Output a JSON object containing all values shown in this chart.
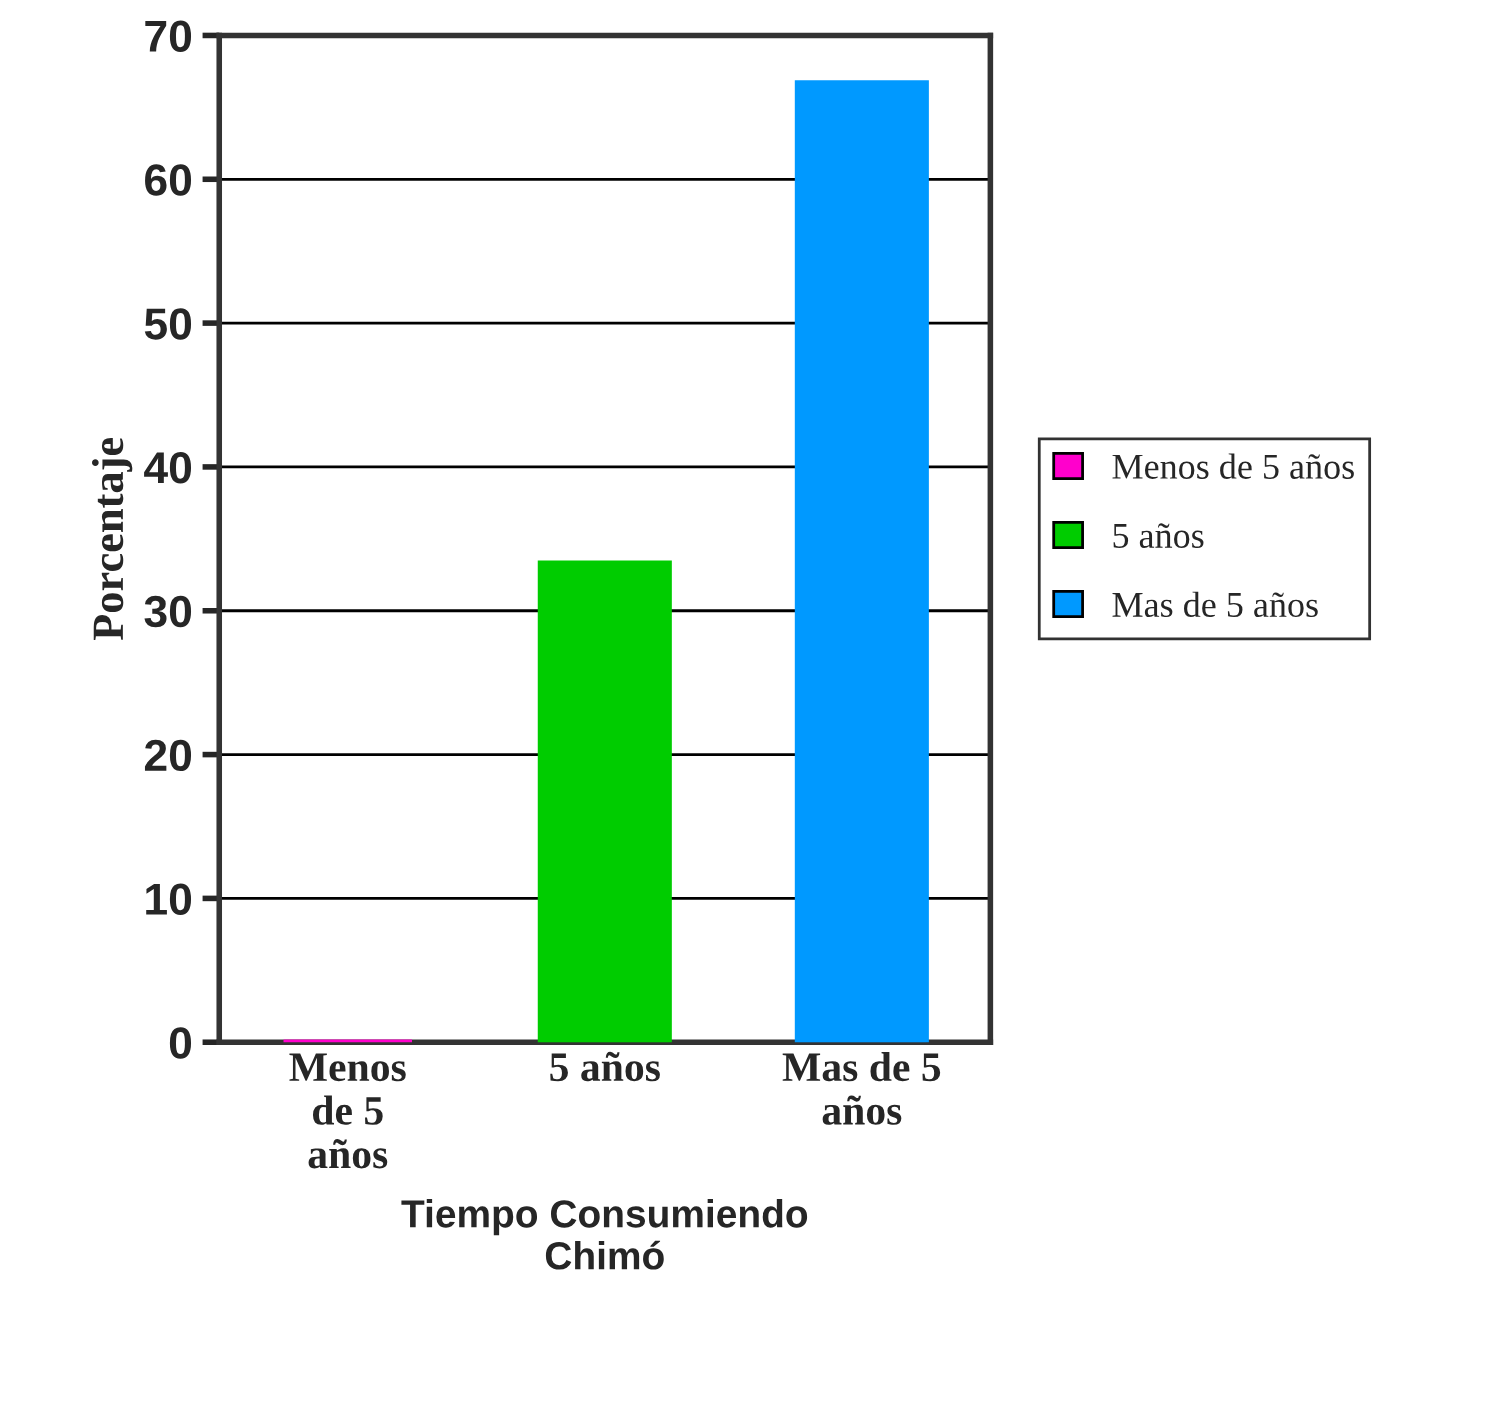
{
  "chart_data": {
    "type": "bar",
    "xlabel": "Tiempo Consumiendo\nChimó",
    "ylabel": "Porcentaje",
    "categories": [
      "Menos\nde 5\naños",
      "5 años",
      "Mas de 5\naños"
    ],
    "series": [
      {
        "name": "Menos de 5 años",
        "color": "#ff00cc",
        "values": [
          0,
          null,
          null
        ]
      },
      {
        "name": "5 años",
        "color": "#00cc00",
        "values": [
          null,
          33.3,
          null
        ]
      },
      {
        "name": "Mas de 5 años",
        "color": "#0099ff",
        "values": [
          null,
          null,
          66.7
        ]
      }
    ],
    "ylim": [
      0,
      70
    ],
    "yticks": [
      0,
      10,
      20,
      30,
      40,
      50,
      60,
      70
    ],
    "grid": "y",
    "legend": "right"
  }
}
